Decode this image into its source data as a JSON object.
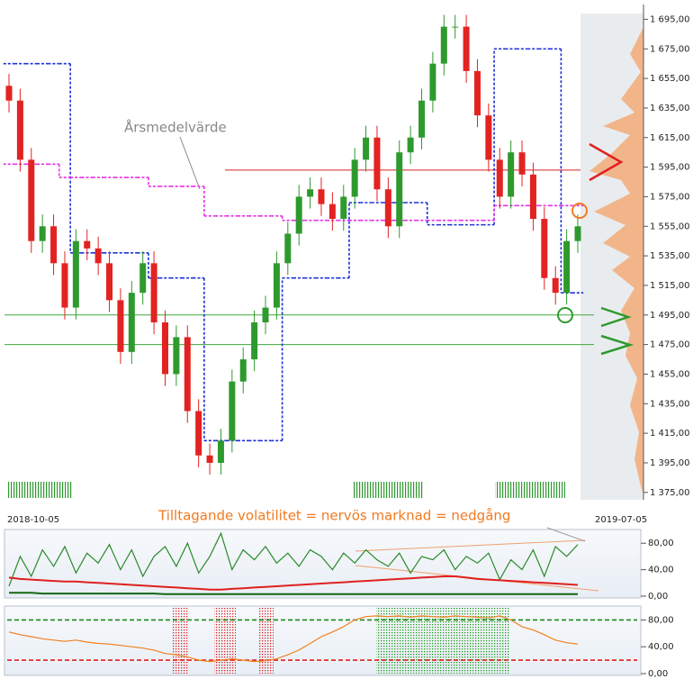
{
  "chart_data": [
    {
      "type": "candlestick",
      "annotations": [
        "Årsmedelvärde",
        "Tilltagande volatilitet = nervös marknad = nedgång"
      ],
      "x_labels": [
        "2018-10-05",
        "2019-07-05"
      ],
      "ylim": [
        1370,
        1705
      ],
      "yticks": [
        {
          "value": 1375,
          "label": "1 375,00"
        },
        {
          "value": 1395,
          "label": "1 395,00"
        },
        {
          "value": 1415,
          "label": "1 415,00"
        },
        {
          "value": 1435,
          "label": "1 435,00"
        },
        {
          "value": 1455,
          "label": "1 455,00"
        },
        {
          "value": 1475,
          "label": "1 475,00"
        },
        {
          "value": 1495,
          "label": "1 495,00"
        },
        {
          "value": 1515,
          "label": "1 515,00"
        },
        {
          "value": 1535,
          "label": "1 535,00"
        },
        {
          "value": 1555,
          "label": "1 555,00"
        },
        {
          "value": 1575,
          "label": "1 575,00"
        },
        {
          "value": 1595,
          "label": "1 595,00"
        },
        {
          "value": 1615,
          "label": "1 615,00"
        },
        {
          "value": 1635,
          "label": "1 635,00"
        },
        {
          "value": 1655,
          "label": "1 655,00"
        },
        {
          "value": 1675,
          "label": "1 675,00"
        },
        {
          "value": 1695,
          "label": "1 695,00"
        }
      ],
      "up_color": "#2e9a2e",
      "down_color": "#e32222",
      "open": [
        1650,
        1640,
        1600,
        1545,
        1555,
        1530,
        1500,
        1545,
        1540,
        1530,
        1505,
        1470,
        1510,
        1530,
        1490,
        1455,
        1480,
        1430,
        1400,
        1395,
        1410,
        1450,
        1465,
        1490,
        1500,
        1530,
        1550,
        1575,
        1580,
        1570,
        1560,
        1575,
        1600,
        1615,
        1580,
        1555,
        1605,
        1615,
        1640,
        1665,
        1690,
        1690,
        1660,
        1630,
        1600,
        1575,
        1605,
        1590,
        1560,
        1520,
        1510,
        1545
      ],
      "high": [
        1658,
        1648,
        1608,
        1563,
        1563,
        1538,
        1553,
        1553,
        1548,
        1538,
        1513,
        1518,
        1538,
        1538,
        1498,
        1488,
        1488,
        1438,
        1408,
        1418,
        1458,
        1473,
        1498,
        1508,
        1538,
        1558,
        1583,
        1588,
        1588,
        1578,
        1583,
        1608,
        1623,
        1623,
        1588,
        1613,
        1623,
        1648,
        1673,
        1698,
        1698,
        1698,
        1668,
        1638,
        1608,
        1613,
        1613,
        1598,
        1568,
        1528,
        1553,
        1563
      ],
      "low": [
        1632,
        1592,
        1537,
        1537,
        1522,
        1492,
        1492,
        1532,
        1522,
        1497,
        1462,
        1462,
        1502,
        1482,
        1447,
        1447,
        1422,
        1392,
        1387,
        1387,
        1402,
        1442,
        1457,
        1482,
        1492,
        1522,
        1542,
        1567,
        1562,
        1552,
        1552,
        1567,
        1592,
        1572,
        1547,
        1547,
        1597,
        1607,
        1632,
        1657,
        1682,
        1652,
        1622,
        1592,
        1567,
        1567,
        1582,
        1552,
        1512,
        1502,
        1502,
        1537
      ],
      "close": [
        1640,
        1600,
        1545,
        1555,
        1530,
        1500,
        1545,
        1540,
        1530,
        1505,
        1470,
        1510,
        1530,
        1490,
        1455,
        1480,
        1430,
        1400,
        1395,
        1410,
        1450,
        1465,
        1490,
        1500,
        1530,
        1550,
        1575,
        1580,
        1570,
        1560,
        1575,
        1600,
        1615,
        1580,
        1555,
        1605,
        1615,
        1640,
        1665,
        1690,
        1690,
        1660,
        1630,
        1600,
        1575,
        1605,
        1590,
        1560,
        1520,
        1510,
        1545,
        1555
      ],
      "step_lines": [
        {
          "color": "#1a2fd6",
          "values": [
            1665,
            1665,
            1665,
            1665,
            1665,
            1665,
            1537,
            1537,
            1537,
            1537,
            1537,
            1537,
            1537,
            1520,
            1520,
            1520,
            1520,
            1520,
            1410,
            1410,
            1410,
            1410,
            1410,
            1410,
            1410,
            1520,
            1520,
            1520,
            1520,
            1520,
            1520,
            1571,
            1571,
            1571,
            1571,
            1571,
            1571,
            1571,
            1556,
            1556,
            1556,
            1556,
            1556,
            1556,
            1675,
            1675,
            1675,
            1675,
            1675,
            1675,
            1510,
            1510
          ]
        },
        {
          "color": "#e62ee6",
          "values": [
            1597,
            1597,
            1597,
            1597,
            1597,
            1588,
            1588,
            1588,
            1588,
            1588,
            1588,
            1588,
            1588,
            1582,
            1582,
            1582,
            1582,
            1582,
            1562,
            1562,
            1562,
            1562,
            1562,
            1562,
            1562,
            1559,
            1559,
            1559,
            1559,
            1559,
            1559,
            1559,
            1559,
            1559,
            1559,
            1559,
            1559,
            1559,
            1559,
            1559,
            1559,
            1559,
            1559,
            1559,
            1569,
            1569,
            1569,
            1569,
            1569,
            1569,
            1569,
            1569
          ]
        }
      ],
      "reference_lines": [
        {
          "value": 1593,
          "color": "#d42020"
        },
        {
          "value": 1495,
          "color": "#3aa83a"
        },
        {
          "value": 1475,
          "color": "#3aa83a"
        }
      ]
    },
    {
      "type": "line",
      "ylim": [
        0,
        98
      ],
      "yticks": [
        {
          "value": 0,
          "label": "0,00"
        },
        {
          "value": 40,
          "label": "40,00"
        },
        {
          "value": 80,
          "label": "80,00"
        }
      ],
      "series": [
        {
          "color": "#2a8a2a",
          "values": [
            15,
            60,
            30,
            70,
            45,
            75,
            35,
            65,
            50,
            78,
            40,
            70,
            30,
            60,
            75,
            45,
            80,
            35,
            60,
            95,
            40,
            70,
            55,
            75,
            50,
            65,
            45,
            70,
            60,
            40,
            65,
            50,
            70,
            55,
            45,
            65,
            35,
            60,
            55,
            70,
            40,
            60,
            50,
            65,
            25,
            55,
            40,
            70,
            30,
            75,
            60,
            78
          ]
        },
        {
          "color": "#e02020",
          "values": [
            28,
            26,
            25,
            24,
            23,
            22,
            22,
            21,
            20,
            19,
            18,
            17,
            16,
            15,
            14,
            13,
            12,
            11,
            10,
            10,
            11,
            12,
            13,
            14,
            15,
            16,
            17,
            18,
            19,
            20,
            21,
            22,
            23,
            24,
            25,
            26,
            27,
            28,
            29,
            30,
            30,
            28,
            26,
            25,
            24,
            23,
            22,
            21,
            20,
            19,
            18,
            17
          ]
        },
        {
          "color": "#146614",
          "values": [
            5,
            5,
            5,
            4,
            4,
            4,
            4,
            4,
            4,
            4,
            4,
            4,
            4,
            4,
            3,
            3,
            3,
            3,
            3,
            3,
            3,
            3,
            3,
            3,
            3,
            3,
            3,
            3,
            3,
            3,
            3,
            3,
            3,
            3,
            3,
            3,
            3,
            3,
            3,
            3,
            3,
            3,
            3,
            3,
            3,
            3,
            3,
            3,
            3,
            3,
            3,
            3
          ]
        }
      ],
      "reference_lines": []
    },
    {
      "type": "line",
      "ylim": [
        0,
        98
      ],
      "yticks": [
        {
          "value": 0,
          "label": "0,00"
        },
        {
          "value": 40,
          "label": "40,00"
        },
        {
          "value": 80,
          "label": "80,00"
        }
      ],
      "series": [
        {
          "color": "#f0801e",
          "values": [
            62,
            58,
            55,
            52,
            50,
            48,
            50,
            47,
            45,
            44,
            42,
            40,
            38,
            35,
            30,
            28,
            25,
            20,
            18,
            20,
            22,
            20,
            18,
            19,
            22,
            28,
            35,
            45,
            55,
            62,
            70,
            80,
            85,
            86,
            85,
            86,
            84,
            86,
            85,
            84,
            86,
            85,
            84,
            83,
            86,
            80,
            70,
            65,
            58,
            50,
            46,
            44
          ]
        }
      ],
      "reference_lines": [
        {
          "value": 80,
          "color": "#1a8a1a"
        },
        {
          "value": 20,
          "color": "#e02020"
        }
      ]
    }
  ]
}
